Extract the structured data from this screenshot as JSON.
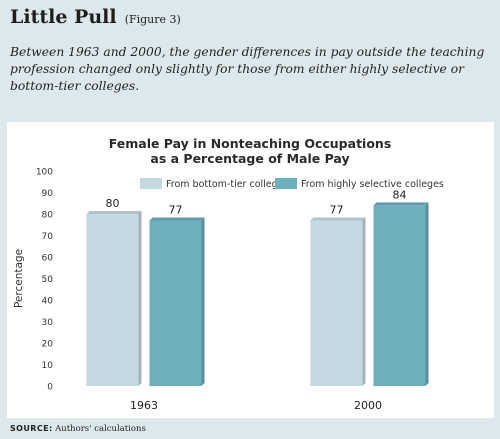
{
  "header": {
    "title": "Little Pull",
    "figure_label": "(Figure 3)",
    "description": "Between 1963 and 2000, the gender differences in pay outside the teaching profession changed only slightly for those from either highly selective or bottom-tier colleges."
  },
  "footer": {
    "source_label": "SOURCE:",
    "source_text": "Authors' calculations"
  },
  "chart_data": {
    "type": "bar",
    "title_lines": [
      "Female Pay in Nonteaching Occupations",
      "as a Percentage of Male Pay"
    ],
    "categories": [
      "1963",
      "2000"
    ],
    "series": [
      {
        "name": "From bottom-tier colleges",
        "values": [
          80,
          77
        ],
        "color": "#c4d9e1"
      },
      {
        "name": "From highly selective colleges",
        "values": [
          77,
          84
        ],
        "color": "#6faebd"
      }
    ],
    "ylabel": "Percentage",
    "xlabel": "",
    "ylim": [
      0,
      100
    ],
    "yticks": [
      0,
      10,
      20,
      30,
      40,
      50,
      60,
      70,
      80,
      90,
      100
    ],
    "grid": false,
    "legend": "top"
  }
}
